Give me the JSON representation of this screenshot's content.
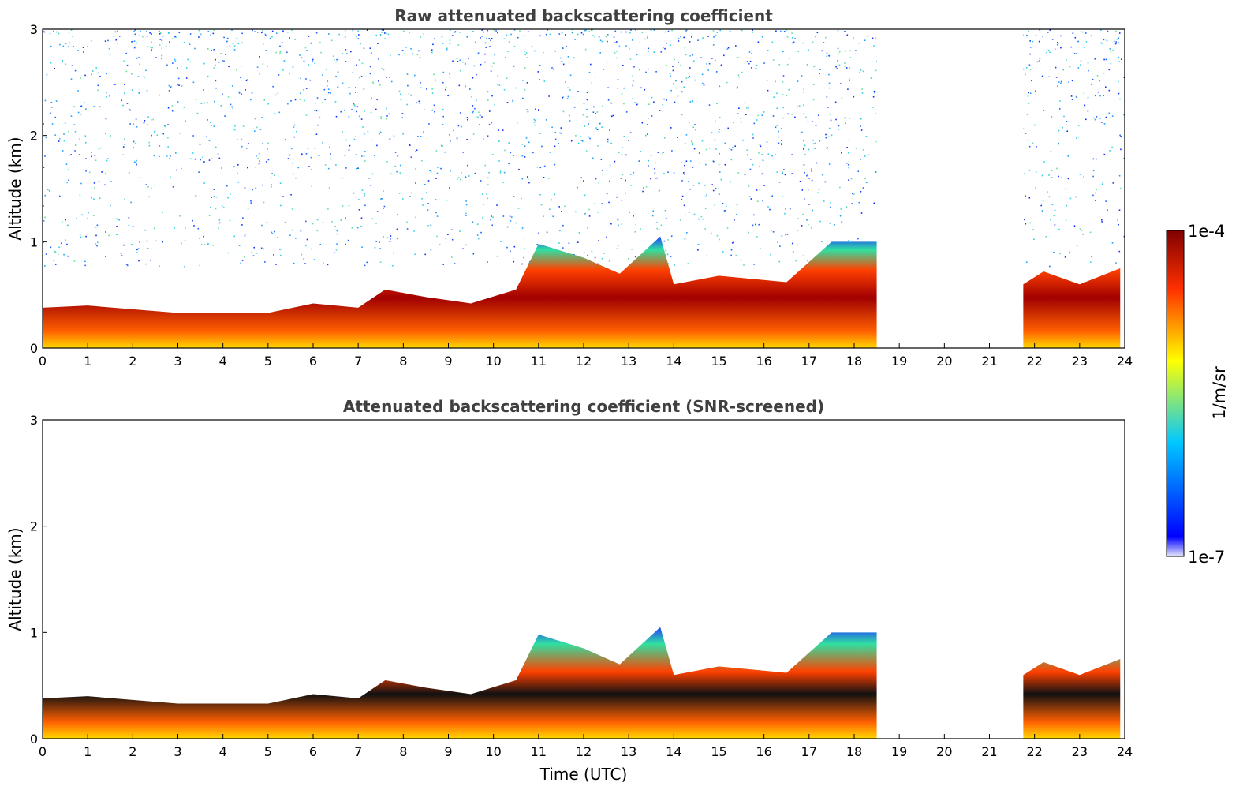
{
  "chart_data": [
    {
      "type": "heatmap",
      "title": "Raw attenuated backscattering coefficient",
      "xlabel": "",
      "ylabel": "Altitude (km)",
      "xlim": [
        0,
        24
      ],
      "ylim": [
        0,
        3
      ],
      "xticks": [
        "0",
        "1",
        "2",
        "3",
        "4",
        "5",
        "6",
        "7",
        "8",
        "9",
        "10",
        "11",
        "12",
        "13",
        "14",
        "15",
        "16",
        "17",
        "18",
        "19",
        "20",
        "21",
        "22",
        "23",
        "24"
      ],
      "yticks": [
        "0",
        "1",
        "2",
        "3"
      ],
      "data_gaps_hours": [
        [
          18.5,
          21.75
        ]
      ],
      "boundary_layer_top_km": [
        {
          "x": 0,
          "y": 0.38
        },
        {
          "x": 1,
          "y": 0.4
        },
        {
          "x": 3,
          "y": 0.33
        },
        {
          "x": 5,
          "y": 0.33
        },
        {
          "x": 6,
          "y": 0.42
        },
        {
          "x": 7,
          "y": 0.38
        },
        {
          "x": 7.6,
          "y": 0.55
        },
        {
          "x": 8.5,
          "y": 0.48
        },
        {
          "x": 9.5,
          "y": 0.42
        },
        {
          "x": 10.5,
          "y": 0.55
        },
        {
          "x": 11,
          "y": 0.98
        },
        {
          "x": 12,
          "y": 0.85
        },
        {
          "x": 12.8,
          "y": 0.7
        },
        {
          "x": 13.7,
          "y": 1.05
        },
        {
          "x": 14,
          "y": 0.6
        },
        {
          "x": 15,
          "y": 0.68
        },
        {
          "x": 16.5,
          "y": 0.62
        },
        {
          "x": 17.5,
          "y": 1.0
        },
        {
          "x": 18.5,
          "y": 1.0
        },
        {
          "x": 21.75,
          "y": 0.6
        },
        {
          "x": 22.2,
          "y": 0.72
        },
        {
          "x": 23,
          "y": 0.6
        },
        {
          "x": 23.9,
          "y": 0.75
        }
      ]
    },
    {
      "type": "heatmap",
      "title": "Attenuated backscattering coefficient (SNR-screened)",
      "xlabel": "Time (UTC)",
      "ylabel": "Altitude (km)",
      "xlim": [
        0,
        24
      ],
      "ylim": [
        0,
        3
      ],
      "xticks": [
        "0",
        "1",
        "2",
        "3",
        "4",
        "5",
        "6",
        "7",
        "8",
        "9",
        "10",
        "11",
        "12",
        "13",
        "14",
        "15",
        "16",
        "17",
        "18",
        "19",
        "20",
        "21",
        "22",
        "23",
        "24"
      ],
      "yticks": [
        "0",
        "1",
        "2",
        "3"
      ],
      "data_gaps_hours": [
        [
          18.5,
          21.75
        ]
      ]
    }
  ],
  "colorbar": {
    "label": "1/m/sr",
    "max_label": "1e-4",
    "min_label": "1e-7",
    "scale": "log",
    "range": [
      1e-07,
      0.0001
    ],
    "colormap": "jet",
    "colors": [
      "#e6e6fa",
      "#0000ff",
      "#00c8ff",
      "#ffff00",
      "#ff3000",
      "#800000"
    ]
  }
}
